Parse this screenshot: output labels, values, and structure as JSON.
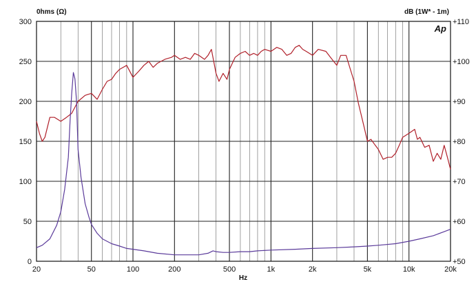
{
  "chart_data": {
    "type": "line",
    "logo": "Ap",
    "xlabel": "Hz",
    "x_scale": "log",
    "xlim": [
      20,
      20000
    ],
    "x_ticks": [
      {
        "value": 20,
        "label": "20"
      },
      {
        "value": 50,
        "label": "50"
      },
      {
        "value": 100,
        "label": "100"
      },
      {
        "value": 200,
        "label": "200"
      },
      {
        "value": 500,
        "label": "500"
      },
      {
        "value": 1000,
        "label": "1k"
      },
      {
        "value": 2000,
        "label": "2k"
      },
      {
        "value": 5000,
        "label": "5k"
      },
      {
        "value": 10000,
        "label": "10k"
      },
      {
        "value": 20000,
        "label": "20k"
      }
    ],
    "y_left": {
      "label": "0hms (Ω)",
      "lim": [
        0,
        300
      ],
      "ticks": [
        "0",
        "50",
        "100",
        "150",
        "200",
        "250",
        "300"
      ]
    },
    "y_right": {
      "label": "dB (1W* - 1m)",
      "lim": [
        50,
        110
      ],
      "ticks": [
        "+50",
        "+60",
        "+70",
        "+80",
        "+90",
        "+100",
        "+110"
      ]
    },
    "grid": true,
    "series": [
      {
        "axis": "right",
        "color": "#b0202a",
        "x": [
          20,
          21,
          22,
          23,
          25,
          27,
          30,
          33,
          36,
          40,
          45,
          50,
          55,
          60,
          65,
          70,
          75,
          80,
          90,
          100,
          110,
          120,
          130,
          140,
          150,
          170,
          190,
          200,
          220,
          240,
          260,
          280,
          300,
          330,
          350,
          370,
          400,
          420,
          450,
          480,
          500,
          550,
          600,
          650,
          700,
          750,
          800,
          850,
          900,
          1000,
          1100,
          1200,
          1300,
          1400,
          1500,
          1600,
          1700,
          1800,
          2000,
          2200,
          2500,
          2700,
          3000,
          3200,
          3500,
          3800,
          4000,
          4300,
          4700,
          5000,
          5300,
          5700,
          6000,
          6500,
          7000,
          7500,
          8000,
          8500,
          9000,
          10000,
          11000,
          11500,
          12000,
          13000,
          14000,
          15000,
          16000,
          17000,
          18000,
          19000,
          20000
        ],
        "y": [
          85,
          82,
          80,
          81,
          86,
          86,
          85,
          86,
          87,
          90,
          91.5,
          92,
          90.5,
          93,
          95,
          95.5,
          97,
          98,
          99,
          96,
          97.5,
          99,
          100,
          98.5,
          99.5,
          100.5,
          101,
          101.5,
          100.5,
          101,
          100.5,
          102,
          101.5,
          100.5,
          101.5,
          103,
          97,
          95,
          97,
          95.5,
          98,
          101,
          102,
          102.5,
          101.5,
          102,
          101.5,
          102.5,
          103,
          102.5,
          103.5,
          103,
          101.5,
          102,
          103.5,
          104,
          103,
          102.5,
          101.5,
          103,
          102.5,
          101,
          99,
          101.5,
          101.5,
          97.5,
          95,
          89.5,
          84,
          80,
          80.5,
          79,
          78,
          75.5,
          76,
          76,
          77,
          79,
          81,
          82,
          83,
          80.5,
          81,
          78.5,
          79,
          75,
          77,
          75.5,
          79,
          76,
          73
        ]
      },
      {
        "axis": "left",
        "color": "#5a3a9a",
        "x": [
          20,
          22,
          25,
          28,
          30,
          32,
          34,
          35,
          36,
          37,
          38,
          39,
          40,
          42,
          45,
          48,
          50,
          55,
          60,
          70,
          80,
          90,
          100,
          120,
          150,
          200,
          250,
          300,
          350,
          380,
          400,
          450,
          500,
          600,
          700,
          800,
          1000,
          1500,
          2000,
          3000,
          4000,
          5000,
          6000,
          8000,
          10000,
          12000,
          15000,
          18000,
          20000
        ],
        "y": [
          17,
          20,
          28,
          45,
          62,
          90,
          130,
          175,
          210,
          236,
          228,
          200,
          140,
          105,
          72,
          55,
          46,
          35,
          28,
          22,
          19,
          16,
          15,
          13,
          10,
          8,
          8,
          8,
          10,
          13,
          12,
          11,
          11,
          12,
          12,
          13,
          14,
          15,
          16,
          17,
          18,
          19,
          20,
          22,
          25,
          28,
          32,
          37,
          40
        ]
      }
    ]
  }
}
